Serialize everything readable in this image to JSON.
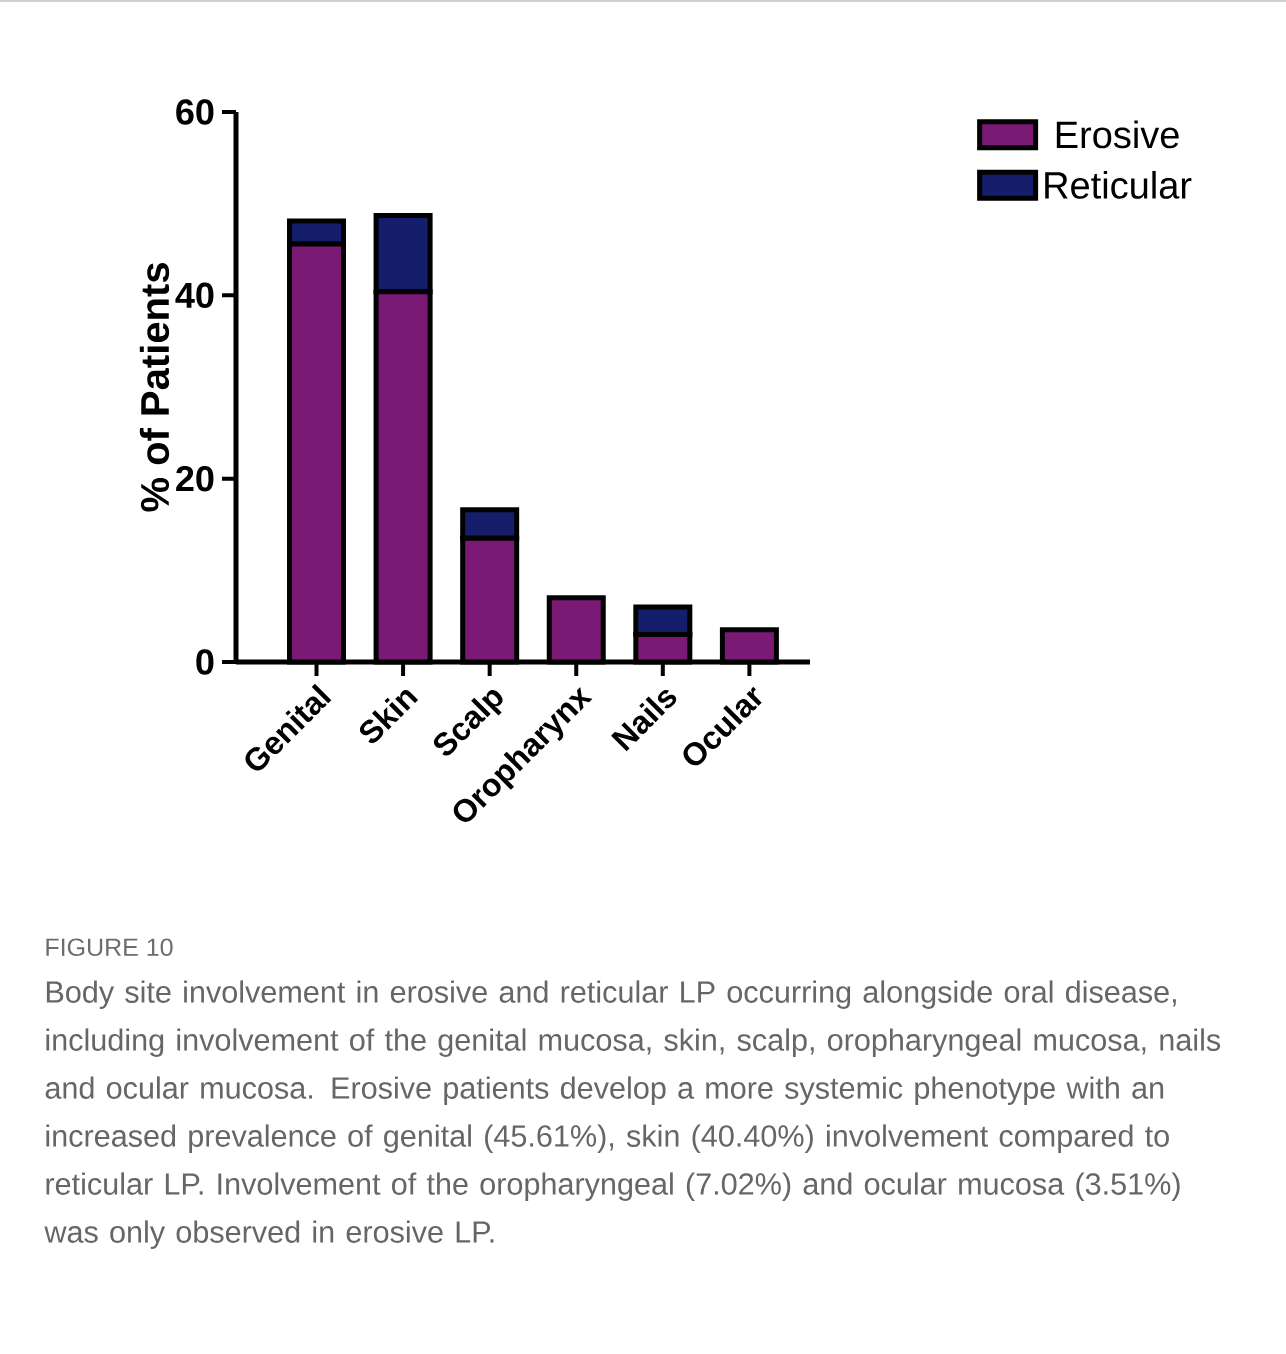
{
  "chart_data": {
    "type": "bar",
    "stacked": true,
    "categories": [
      "Genital",
      "Skin",
      "Scalp",
      "Oropharynx",
      "Nails",
      "Ocular"
    ],
    "series": [
      {
        "name": "Erosive",
        "color": "#7b1a75",
        "values": [
          45.61,
          40.4,
          13.5,
          7.02,
          3.0,
          3.51
        ]
      },
      {
        "name": "Reticular",
        "color": "#141e6a",
        "values": [
          2.5,
          8.3,
          3.1,
          0,
          3.0,
          0
        ]
      }
    ],
    "ylabel": "% of Patients",
    "ylim": [
      0,
      60
    ],
    "yticks": [
      0,
      20,
      40,
      60
    ],
    "legend": "top right",
    "annotations": [
      "FIGURE 10",
      "Body site involvement in erosive and reticular LP occurring alongside oral disease, including involvement of the genital mucosa, skin, scalp, oropharyngeal mucosa, nails and ocular mucosa. Erosive patients develop a more systemic phenotype with an increased prevalence of genital (45.61%), skin (40.40%) involvement compared to reticular LP. Involvement of the oropharyngeal (7.02%) and ocular mucosa (3.51%) was only observed in erosive LP."
    ]
  }
}
